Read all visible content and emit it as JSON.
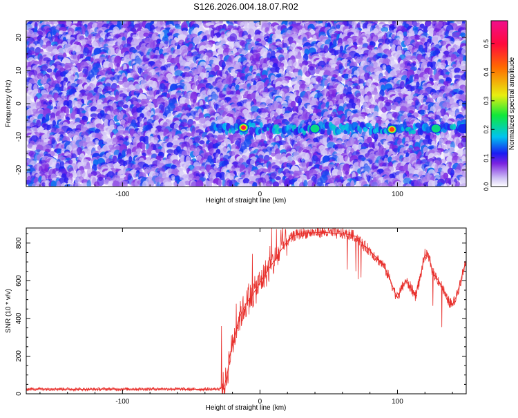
{
  "title": "S126.2026.004.18.07.R02",
  "chart_data": [
    {
      "type": "heatmap",
      "xlabel": "Height of straight line (km)",
      "ylabel": "Frequency (Hz)",
      "xlim": [
        -170,
        150
      ],
      "ylim": [
        -25,
        25
      ],
      "x_ticks": [
        -100,
        0,
        100
      ],
      "y_ticks": [
        -20,
        -10,
        0,
        10,
        20
      ],
      "colorbar": {
        "label": "Normalized spectral amplitude",
        "range": [
          0,
          0.58
        ],
        "ticks": [
          0.0,
          0.1,
          0.2,
          0.3,
          0.4,
          0.5
        ]
      },
      "features": {
        "signal_band": {
          "x_start": -35,
          "x_end": 150,
          "frequency": -7.5
        },
        "peaks": [
          {
            "x": -12,
            "y": -7.2,
            "amplitude": 0.55
          },
          {
            "x": 40,
            "y": -7.5,
            "amplitude": 0.3
          },
          {
            "x": 96,
            "y": -7.8,
            "amplitude": 0.5
          },
          {
            "x": 128,
            "y": -7.5,
            "amplitude": 0.22
          },
          {
            "x": 148,
            "y": -7.5,
            "amplitude": 0.2
          }
        ]
      }
    },
    {
      "type": "line",
      "xlabel": "Height of straight line (km)",
      "ylabel": "SNR (10 * v/v)",
      "xlim": [
        -170,
        150
      ],
      "ylim": [
        0,
        880
      ],
      "x_ticks": [
        -100,
        0,
        100
      ],
      "y_ticks": [
        0,
        200,
        400,
        600,
        800
      ],
      "series": [
        {
          "color": "#e8302c",
          "x": [
            -170,
            -150,
            -130,
            -110,
            -90,
            -70,
            -50,
            -30,
            -26,
            -24,
            -22,
            -20,
            -18,
            -16,
            -14,
            -12,
            -10,
            -5,
            0,
            5,
            10,
            15,
            20,
            25,
            30,
            35,
            40,
            45,
            50,
            55,
            60,
            65,
            70,
            75,
            80,
            85,
            90,
            95,
            98,
            100,
            103,
            106,
            110,
            113,
            116,
            120,
            123,
            126,
            130,
            133,
            136,
            140,
            143,
            146,
            148,
            150
          ],
          "y": [
            25,
            26,
            24,
            25,
            25,
            26,
            24,
            25,
            40,
            90,
            200,
            260,
            320,
            380,
            420,
            450,
            480,
            530,
            590,
            650,
            700,
            760,
            810,
            840,
            850,
            855,
            855,
            858,
            855,
            850,
            850,
            845,
            835,
            790,
            760,
            720,
            680,
            600,
            540,
            510,
            560,
            600,
            560,
            520,
            600,
            740,
            720,
            640,
            600,
            560,
            500,
            470,
            520,
            600,
            660,
            700
          ]
        }
      ]
    }
  ]
}
